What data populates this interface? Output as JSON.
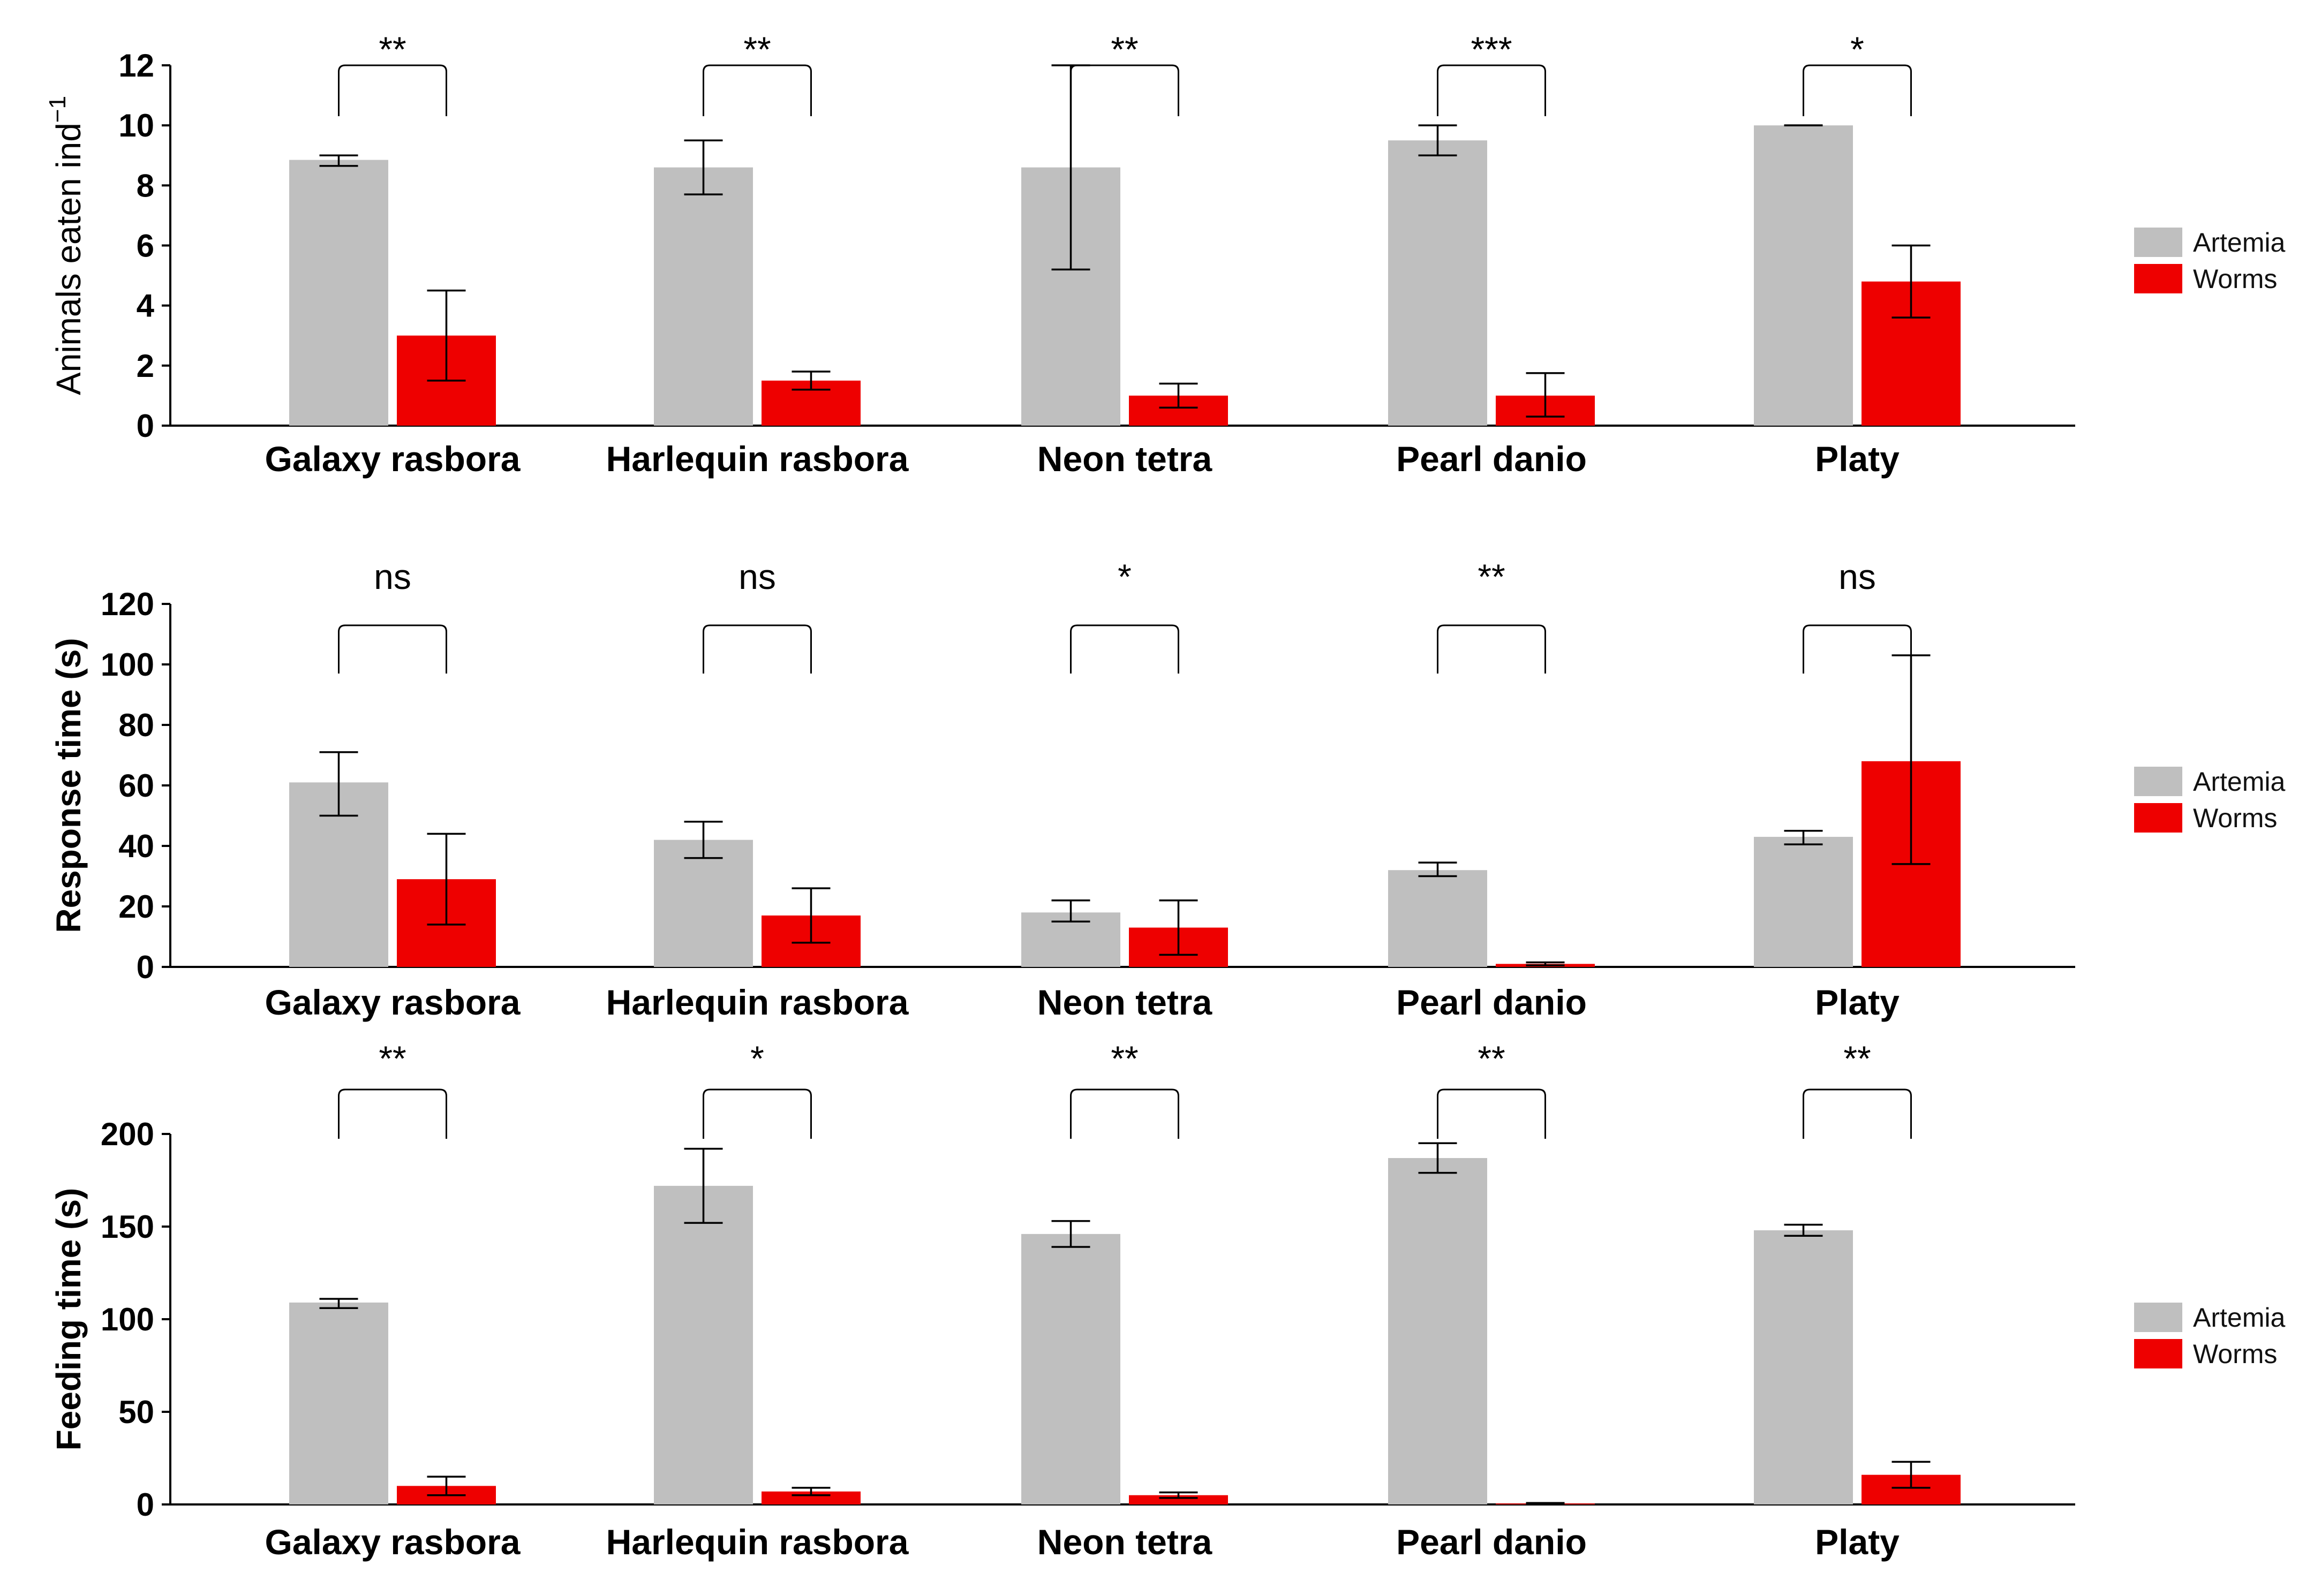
{
  "colors": {
    "artemia": "#bfbfbf",
    "worms": "#ee0000",
    "axis": "#000000"
  },
  "chart_data": [
    {
      "type": "bar",
      "id": "eaten",
      "ylabel": "Animals eaten  ind",
      "ylabel_sup": "−1",
      "ylabel_bold": false,
      "ylim": [
        0,
        12
      ],
      "yticks": [
        "0",
        "2",
        "4",
        "6",
        "8",
        "10",
        "12"
      ],
      "ytick_values": [
        0,
        2,
        4,
        6,
        8,
        10,
        12
      ],
      "categories": [
        "Galaxy rasbora",
        "Harlequin rasbora",
        "Neon tetra",
        "Pearl danio",
        "Platy"
      ],
      "series": [
        {
          "name": "Artemia",
          "values": [
            8.85,
            8.6,
            8.6,
            9.5,
            10.0
          ],
          "err_low": [
            8.65,
            7.7,
            5.2,
            9.0,
            10.0
          ],
          "err_high": [
            9.0,
            9.5,
            12.0,
            10.0,
            10.0
          ]
        },
        {
          "name": "Worms",
          "values": [
            3.0,
            1.5,
            1.0,
            1.0,
            4.8
          ],
          "err_low": [
            1.5,
            1.2,
            0.6,
            0.3,
            3.6
          ],
          "err_high": [
            4.5,
            1.8,
            1.4,
            1.75,
            6.0
          ]
        }
      ],
      "significance": [
        "**",
        "**",
        "**",
        "***",
        "*"
      ],
      "legend": [
        "Artemia",
        "Worms"
      ]
    },
    {
      "type": "bar",
      "id": "response",
      "ylabel": "Response time (s)",
      "ylabel_sup": "",
      "ylabel_bold": true,
      "ylim": [
        0,
        120
      ],
      "yticks": [
        "0",
        "20",
        "40",
        "60",
        "80",
        "100",
        "120"
      ],
      "ytick_values": [
        0,
        20,
        40,
        60,
        80,
        100,
        120
      ],
      "categories": [
        "Galaxy rasbora",
        "Harlequin rasbora",
        "Neon tetra",
        "Pearl danio",
        "Platy"
      ],
      "series": [
        {
          "name": "Artemia",
          "values": [
            61,
            42,
            18,
            32,
            43
          ],
          "err_low": [
            50,
            36,
            15,
            30,
            40.5
          ],
          "err_high": [
            71,
            48,
            22,
            34.5,
            45
          ]
        },
        {
          "name": "Worms",
          "values": [
            29,
            17,
            13,
            1,
            68
          ],
          "err_low": [
            14,
            8,
            4,
            0.5,
            34
          ],
          "err_high": [
            44,
            26,
            22,
            1.5,
            103
          ]
        }
      ],
      "significance": [
        "ns",
        "ns",
        "*",
        "**",
        "ns"
      ],
      "legend": [
        "Artemia",
        "Worms"
      ]
    },
    {
      "type": "bar",
      "id": "feeding",
      "ylabel": "Feeding time (s)",
      "ylabel_sup": "",
      "ylabel_bold": true,
      "ylim": [
        0,
        200
      ],
      "yticks": [
        "0",
        "50",
        "100",
        "150",
        "200"
      ],
      "ytick_values": [
        0,
        50,
        100,
        150,
        200
      ],
      "categories": [
        "Galaxy rasbora",
        "Harlequin rasbora",
        "Neon tetra",
        "Pearl danio",
        "Platy"
      ],
      "series": [
        {
          "name": "Artemia",
          "values": [
            109,
            172,
            146,
            187,
            148
          ],
          "err_low": [
            106,
            152,
            139,
            179,
            145
          ],
          "err_high": [
            111,
            192,
            153,
            195,
            151
          ]
        },
        {
          "name": "Worms",
          "values": [
            10,
            7,
            5,
            0.5,
            16
          ],
          "err_low": [
            5,
            5,
            3.5,
            0.2,
            9
          ],
          "err_high": [
            15,
            9,
            6.5,
            0.8,
            23
          ]
        }
      ],
      "significance": [
        "**",
        "*",
        "**",
        "**",
        "**"
      ],
      "legend": [
        "Artemia",
        "Worms"
      ]
    }
  ]
}
